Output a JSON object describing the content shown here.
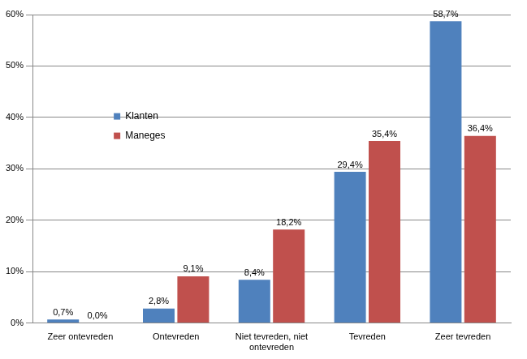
{
  "chart_data": {
    "type": "bar",
    "categories": [
      "Zeer ontevreden",
      "Ontevreden",
      "Niet tevreden, niet ontevreden",
      "Tevreden",
      "Zeer tevreden"
    ],
    "series": [
      {
        "name": "Klanten",
        "color": "#4f81bd",
        "values": [
          0.7,
          2.8,
          8.4,
          29.4,
          58.7
        ],
        "value_labels": [
          "0,7%",
          "2,8%",
          "8,4%",
          "29,4%",
          "58,7%"
        ]
      },
      {
        "name": "Maneges",
        "color": "#c0504d",
        "values": [
          0.0,
          9.1,
          18.2,
          35.4,
          36.4
        ],
        "value_labels": [
          "0,0%",
          "9,1%",
          "18,2%",
          "35,4%",
          "36,4%"
        ]
      }
    ],
    "ylim": [
      0,
      60
    ],
    "yticks": [
      {
        "value": 0,
        "label": "0%"
      },
      {
        "value": 10,
        "label": "10%"
      },
      {
        "value": 20,
        "label": "20%"
      },
      {
        "value": 30,
        "label": "30%"
      },
      {
        "value": 40,
        "label": "40%"
      },
      {
        "value": 50,
        "label": "50%"
      },
      {
        "value": 60,
        "label": "60%"
      }
    ],
    "grid": true,
    "legend": "left",
    "data_labels": true
  }
}
